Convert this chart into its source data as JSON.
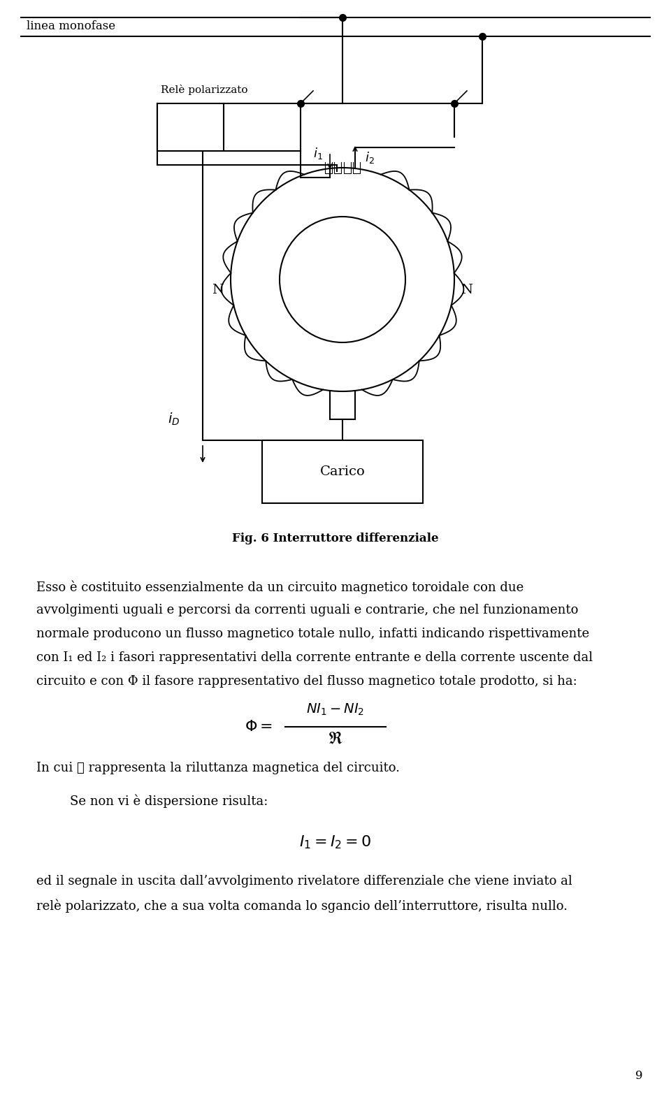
{
  "bg_color": "#ffffff",
  "fig_width": 9.6,
  "fig_height": 15.64,
  "title_caption": "Fig. 6 Interruttore differenziale",
  "label_linea": "linea monofase",
  "label_rele": "Relè polarizzato",
  "label_carico": "Carico",
  "label_N_left": "N",
  "label_N_right": "N",
  "page_number": "9",
  "para1_line1": "Esso è costituito essenzialmente da un circuito magnetico toroidale con due",
  "para1_line2": "avvolgimenti uguali e percorsi da correnti uguali e contrarie, che nel funzionamento",
  "para1_line3": "normale producono un flusso magnetico totale nullo, infatti indicando rispettivamente",
  "para1_line4": "con I₁ ed I₂ i fasori rappresentativi della corrente entrante e della corrente uscente dal",
  "para1_line5": "circuito e con Φ il fasore rappresentativo del flusso magnetico totale prodotto, si ha:",
  "para2": "In cui ℜ rappresenta la riluttanza magnetica del circuito.",
  "para3": "Se non vi è dispersione risulta:",
  "para4_line1": "ed il segnale in uscita dall’avvolgimento rivelatore differenziale che viene inviato al",
  "para4_line2": "relè polarizzato, che a sua volta comanda lo sgancio dell’interruttore, risulta nullo."
}
